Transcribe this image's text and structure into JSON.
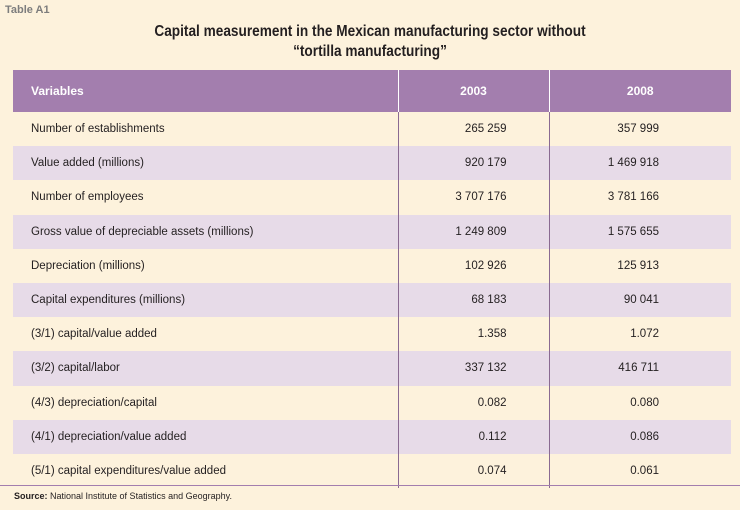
{
  "table_label": "Table A1",
  "title": {
    "line1": "Capital measurement in the Mexican manufacturing sector without",
    "line2": "“tortilla manufacturing”"
  },
  "headers": [
    "Variables",
    "2003",
    "2008"
  ],
  "rows": [
    [
      "Number of establishments",
      "265 259",
      "357 999"
    ],
    [
      "Value added (millions)",
      "920 179",
      "1 469 918"
    ],
    [
      "Number of employees",
      "3 707 176",
      "3 781 166"
    ],
    [
      "Gross value of depreciable assets (millions)",
      "1 249 809",
      "1 575 655"
    ],
    [
      "Depreciation (millions)",
      "102 926",
      "125 913"
    ],
    [
      "Capital expenditures (millions)",
      "68 183",
      "90 041"
    ],
    [
      "(3/1) capital/value added",
      "1.358",
      "1.072"
    ],
    [
      "(3/2) capital/labor",
      "337 132",
      "416 711"
    ],
    [
      "(4/3) depreciation/capital",
      "0.082",
      "0.080"
    ],
    [
      "(4/1) depreciation/value added",
      "0.112",
      "0.086"
    ],
    [
      "(5/1) capital expenditures/value added",
      "0.074",
      "0.061"
    ]
  ],
  "source": {
    "label": "Source:",
    "text": " National Institute of Statistics and Geography."
  }
}
